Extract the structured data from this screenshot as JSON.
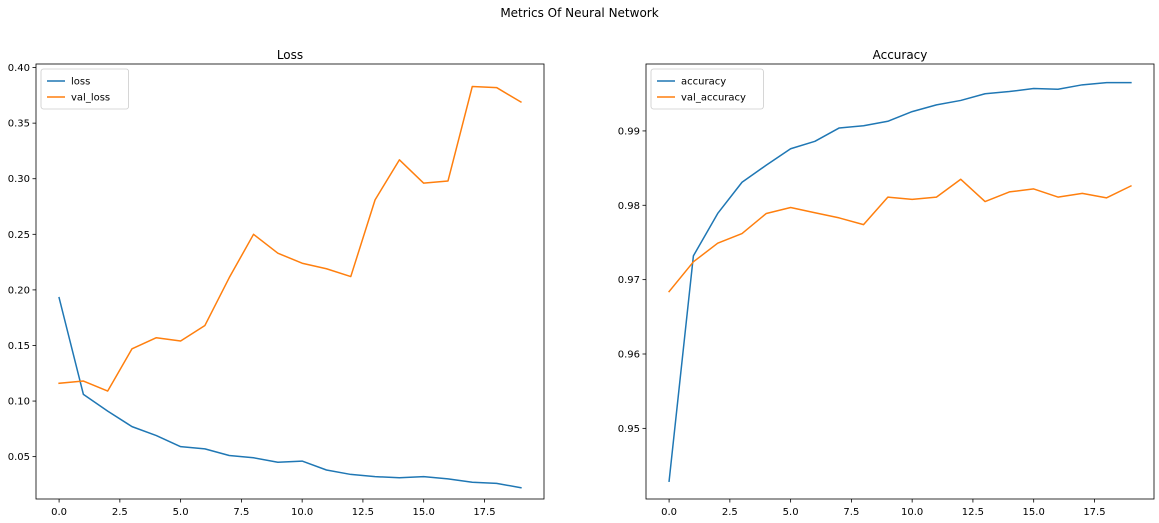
{
  "figure": {
    "suptitle": "Metrics Of Neural Network"
  },
  "chart_data": [
    {
      "type": "line",
      "title": "Loss",
      "xlabel": "",
      "ylabel": "",
      "x": [
        0,
        1,
        2,
        3,
        4,
        5,
        6,
        7,
        8,
        9,
        10,
        11,
        12,
        13,
        14,
        15,
        16,
        17,
        18,
        19
      ],
      "xlim": [
        -0.95,
        19.95
      ],
      "ylim": [
        0.0119,
        0.4032
      ],
      "xticks": [
        0.0,
        2.5,
        5.0,
        7.5,
        10.0,
        12.5,
        15.0,
        17.5
      ],
      "xtick_labels": [
        "0.0",
        "2.5",
        "5.0",
        "7.5",
        "10.0",
        "12.5",
        "15.0",
        "17.5"
      ],
      "yticks": [
        0.05,
        0.1,
        0.15,
        0.2,
        0.25,
        0.3,
        0.35,
        0.4
      ],
      "ytick_labels": [
        "0.05",
        "0.10",
        "0.15",
        "0.20",
        "0.25",
        "0.30",
        "0.35",
        "0.40"
      ],
      "grid": false,
      "legend_position": "top-left",
      "series": [
        {
          "name": "loss",
          "color": "#1f77b4",
          "values": [
            0.193,
            0.106,
            0.091,
            0.077,
            0.069,
            0.059,
            0.057,
            0.051,
            0.049,
            0.045,
            0.046,
            0.038,
            0.034,
            0.032,
            0.031,
            0.032,
            0.03,
            0.027,
            0.026,
            0.022
          ]
        },
        {
          "name": "val_loss",
          "color": "#ff7f0e",
          "values": [
            0.116,
            0.118,
            0.109,
            0.147,
            0.157,
            0.154,
            0.168,
            0.211,
            0.25,
            0.233,
            0.224,
            0.219,
            0.212,
            0.281,
            0.317,
            0.296,
            0.298,
            0.383,
            0.382,
            0.369
          ]
        }
      ]
    },
    {
      "type": "line",
      "title": "Accuracy",
      "xlabel": "",
      "ylabel": "",
      "x": [
        0,
        1,
        2,
        3,
        4,
        5,
        6,
        7,
        8,
        9,
        10,
        11,
        12,
        13,
        14,
        15,
        16,
        17,
        18,
        19
      ],
      "xlim": [
        -0.95,
        19.95
      ],
      "ylim": [
        0.9405,
        0.999
      ],
      "xticks": [
        0.0,
        2.5,
        5.0,
        7.5,
        10.0,
        12.5,
        15.0,
        17.5
      ],
      "xtick_labels": [
        "0.0",
        "2.5",
        "5.0",
        "7.5",
        "10.0",
        "12.5",
        "15.0",
        "17.5"
      ],
      "yticks": [
        0.95,
        0.96,
        0.97,
        0.98,
        0.99
      ],
      "ytick_labels": [
        "0.95",
        "0.96",
        "0.97",
        "0.98",
        "0.99"
      ],
      "grid": false,
      "legend_position": "top-left",
      "series": [
        {
          "name": "accuracy",
          "color": "#1f77b4",
          "values": [
            0.9429,
            0.9732,
            0.9789,
            0.9831,
            0.9854,
            0.9876,
            0.9886,
            0.9904,
            0.9907,
            0.9913,
            0.9926,
            0.9935,
            0.9941,
            0.995,
            0.9953,
            0.9957,
            0.9956,
            0.9962,
            0.9965,
            0.9965
          ]
        },
        {
          "name": "val_accuracy",
          "color": "#ff7f0e",
          "values": [
            0.9684,
            0.9724,
            0.9749,
            0.9762,
            0.9789,
            0.9797,
            0.979,
            0.9783,
            0.9774,
            0.9811,
            0.9808,
            0.9811,
            0.9835,
            0.9805,
            0.9818,
            0.9822,
            0.9811,
            0.9816,
            0.981,
            0.9826
          ]
        }
      ]
    }
  ]
}
